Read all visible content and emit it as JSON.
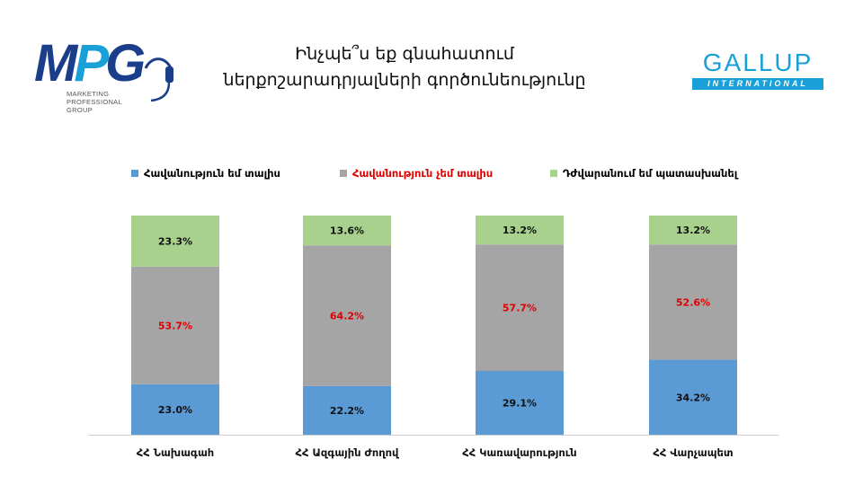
{
  "header": {
    "title_line1": "Ինչպե՞ս եք գնահատում",
    "title_line2": "ներքոշարադրյալների գործունեությունը"
  },
  "logos": {
    "mpg": {
      "letters": "MPG",
      "subtitle": [
        "MARKETING",
        "PROFESSIONAL",
        "GROUP"
      ],
      "icon": "headset-icon"
    },
    "gallup": {
      "word": "GALLUP",
      "tagline": "INTERNATIONAL"
    }
  },
  "colors": {
    "approve": "#5b9bd5",
    "disapprove": "#a5a5a5",
    "hard_to_say": "#a9d18e",
    "disapprove_text": "#e00000",
    "text": "#111111"
  },
  "chart_data": {
    "type": "bar",
    "stacked": true,
    "categories": [
      "ՀՀ Նախագահ",
      "ՀՀ Ազգային Ժողով",
      "ՀՀ Կառավարություն",
      "ՀՀ Վարչապետ"
    ],
    "series": [
      {
        "name": "Հավանություն եմ տալիս",
        "values": [
          23.0,
          22.2,
          29.1,
          34.2
        ],
        "labels": [
          "23.0%",
          "22.2%",
          "29.1%",
          "34.2%"
        ]
      },
      {
        "name": "Հավանություն չեմ տալիս",
        "values": [
          53.7,
          64.2,
          57.7,
          52.6
        ],
        "labels": [
          "53.7%",
          "64.2%",
          "57.7%",
          "52.6%"
        ]
      },
      {
        "name": "Դժվարանում եմ պատասխանել",
        "values": [
          23.3,
          13.6,
          13.2,
          13.2
        ],
        "labels": [
          "23.3%",
          "13.6%",
          "13.2%",
          "13.2%"
        ]
      }
    ],
    "ylim": [
      0,
      100
    ],
    "legend_position": "top",
    "grid": false
  }
}
